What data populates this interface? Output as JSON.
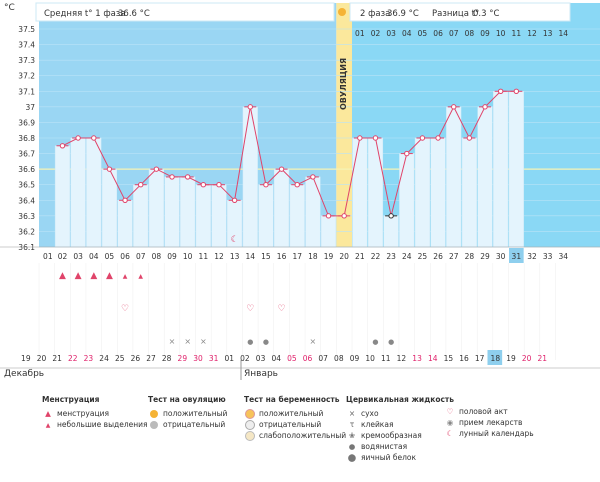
{
  "colors": {
    "phase1_bg": "#9ad6f3",
    "phase2_bg": "#8ad8f5",
    "bar_fill": "#e4f4fd",
    "line": "#e0446a",
    "ovulation_band": "#fbe89c",
    "coverline": "#f3f0a8",
    "weekend_red": "#e0206a",
    "today_cell": "#8ecfee"
  },
  "header": {
    "unit": "°C",
    "phase1_label": "Средняя t° 1 фаза",
    "phase1_value": "36.6 °C",
    "phase2_label": "2 фаза",
    "phase2_value": "36.9 °C",
    "diff_label": "Разница t°",
    "diff_value": "0.3 °C",
    "ovulation_label": "ОВУЛЯЦИЯ"
  },
  "chart_data": {
    "type": "line",
    "title": "",
    "ylabel": "°C",
    "ylim": [
      36.1,
      37.5
    ],
    "yticks": [
      "37.5",
      "37.4",
      "37.3",
      "37.2",
      "37.1",
      "37",
      "36.9",
      "36.8",
      "36.7",
      "36.6",
      "36.5",
      "36.4",
      "36.3",
      "36.2",
      "36.1"
    ],
    "cycle_days": [
      "01",
      "02",
      "03",
      "04",
      "05",
      "06",
      "07",
      "08",
      "09",
      "10",
      "11",
      "12",
      "13",
      "14",
      "15",
      "16",
      "17",
      "18",
      "19",
      "20",
      "21",
      "22",
      "23",
      "24",
      "25",
      "26",
      "27",
      "28",
      "29",
      "30",
      "31",
      "32",
      "33",
      "34"
    ],
    "temperatures": [
      null,
      36.75,
      36.8,
      36.8,
      36.6,
      36.4,
      36.5,
      36.6,
      36.55,
      36.55,
      36.5,
      36.5,
      36.4,
      37.0,
      36.5,
      36.6,
      36.5,
      36.55,
      36.3,
      36.3,
      36.8,
      36.8,
      36.3,
      36.7,
      36.8,
      36.8,
      37.0,
      36.8,
      37.0,
      37.1,
      37.1,
      null,
      null,
      null
    ],
    "coverline": 36.6,
    "ovulation_day": "20",
    "phase2_days_top": [
      "01",
      "02",
      "03",
      "04",
      "05",
      "06",
      "07",
      "08",
      "09",
      "10",
      "11",
      "12",
      "13",
      "14"
    ],
    "dates": [
      "19",
      "20",
      "21",
      "22",
      "23",
      "24",
      "25",
      "26",
      "27",
      "28",
      "29",
      "30",
      "31",
      "01",
      "02",
      "03",
      "04",
      "05",
      "06",
      "07",
      "08",
      "09",
      "10",
      "11",
      "12",
      "13",
      "14",
      "15",
      "16",
      "17",
      "18",
      "19",
      "20",
      "21"
    ],
    "red_dates_index": [
      3,
      4,
      10,
      11,
      12,
      17,
      18,
      25,
      26,
      32,
      33
    ],
    "today_index": 30,
    "month_left": "Декабрь",
    "month_right": "Январь"
  },
  "legend": {
    "menstruation_title": "Менструация",
    "menstruation_items": [
      "менструация",
      "небольшие выделения"
    ],
    "ovulation_test_title": "Тест на овуляцию",
    "ovulation_test_items": [
      "положительный",
      "отрицательный"
    ],
    "pregnancy_test_title": "Тест на беременность",
    "pregnancy_test_items": [
      "положительный",
      "отрицательный",
      "слабоположительный"
    ],
    "cervical_title": "Цервикальная жидкость",
    "cervical_items": [
      "сухо",
      "клейкая",
      "кремообразная",
      "водянистая",
      "яичный белок"
    ],
    "other_items": [
      "половой акт",
      "прием лекарств",
      "лунный календарь"
    ]
  }
}
